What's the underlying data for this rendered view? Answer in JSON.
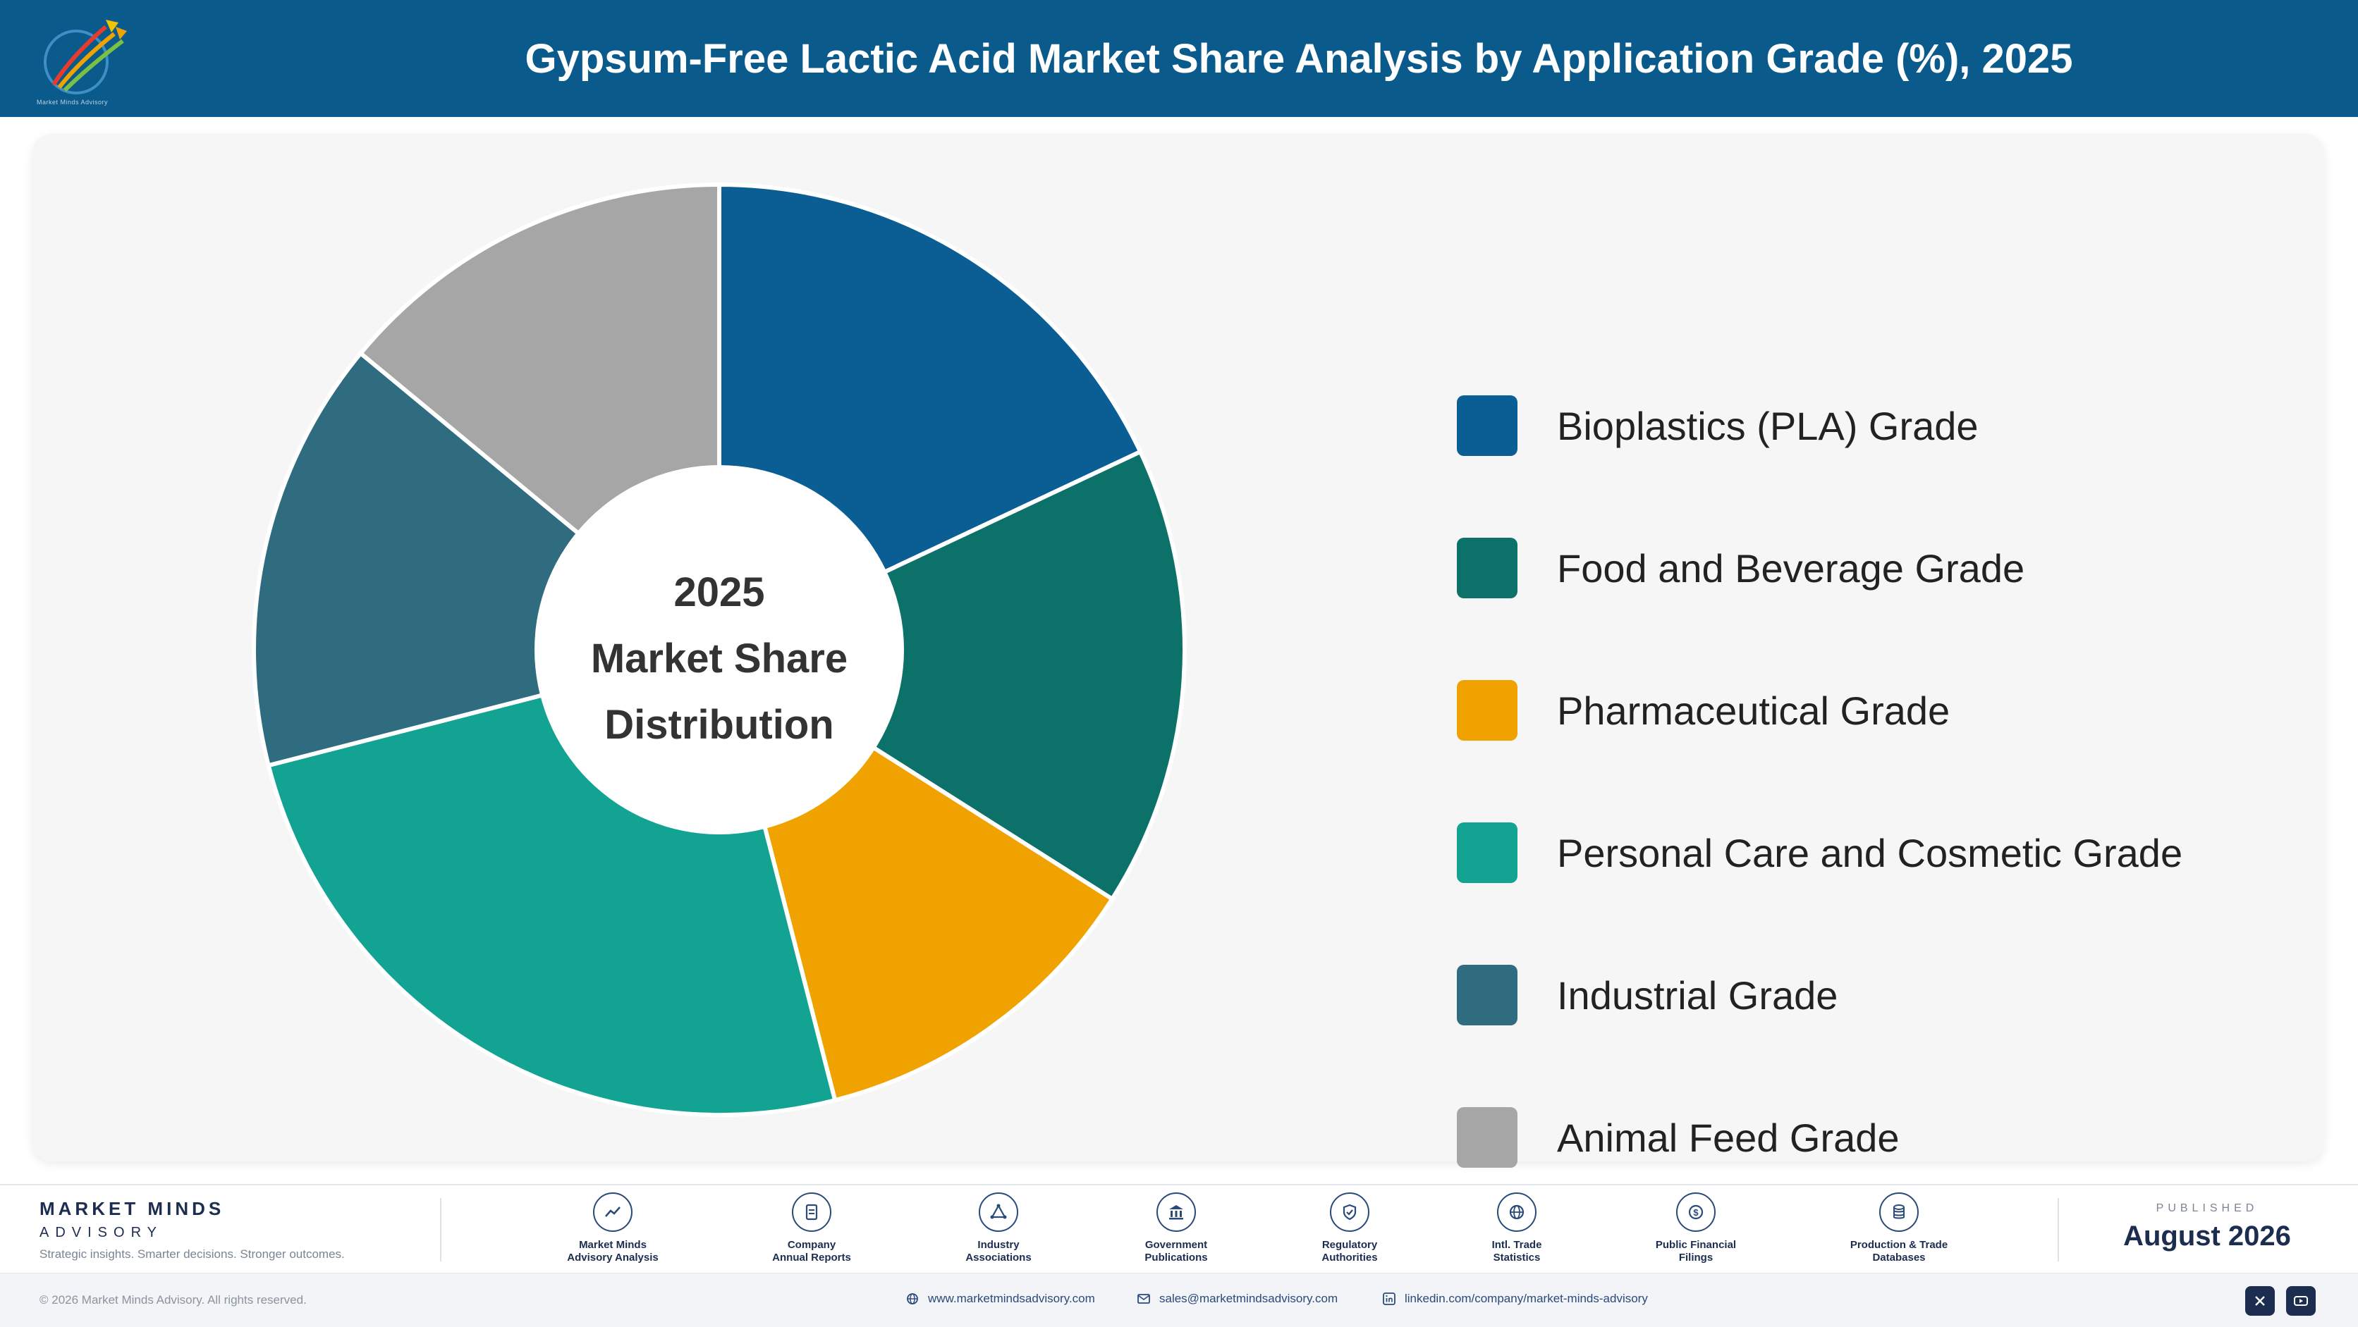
{
  "header": {
    "title": "Gypsum-Free Lactic Acid Market Share Analysis by Application Grade (%), 2025",
    "logo_caption": "Market Minds Advisory"
  },
  "chart_data": {
    "type": "pie",
    "variant": "donut",
    "center_text": [
      "2025",
      "Market Share",
      "Distribution"
    ],
    "categories": [
      "Bioplastics (PLA) Grade",
      "Food and Beverage Grade",
      "Pharmaceutical Grade",
      "Personal Care and Cosmetic Grade",
      "Industrial Grade",
      "Animal Feed Grade"
    ],
    "values": [
      18,
      16,
      12,
      25,
      15,
      14
    ],
    "colors": [
      "#0a5e94",
      "#0c7169",
      "#f0a300",
      "#12a393",
      "#2f6c80",
      "#a6a6a6"
    ],
    "legend_position": "right"
  },
  "footer": {
    "brand_name": "MARKET MINDS",
    "brand_sub": "ADVISORY",
    "brand_tagline": "Strategic insights. Smarter decisions. Stronger outcomes.",
    "sources": [
      {
        "line1": "Market Minds",
        "line2": "Advisory Analysis",
        "icon": "chart-line-icon"
      },
      {
        "line1": "Company",
        "line2": "Annual Reports",
        "icon": "document-icon"
      },
      {
        "line1": "Industry",
        "line2": "Associations",
        "icon": "network-icon"
      },
      {
        "line1": "Government",
        "line2": "Publications",
        "icon": "government-building-icon"
      },
      {
        "line1": "Regulatory",
        "line2": "Authorities",
        "icon": "shield-check-icon"
      },
      {
        "line1": "Intl. Trade",
        "line2": "Statistics",
        "icon": "globe-icon"
      },
      {
        "line1": "Public Financial",
        "line2": "Filings",
        "icon": "dollar-coin-icon"
      },
      {
        "line1": "Production & Trade",
        "line2": "Databases",
        "icon": "database-icon"
      }
    ],
    "published_label": "PUBLISHED",
    "published_date": "August 2026"
  },
  "bottom_bar": {
    "copyright": "© 2026 Market Minds Advisory. All rights reserved.",
    "website": "www.marketmindsadvisory.com",
    "email": "sales@marketmindsadvisory.com",
    "linkedin": "linkedin.com/company/market-minds-advisory"
  }
}
